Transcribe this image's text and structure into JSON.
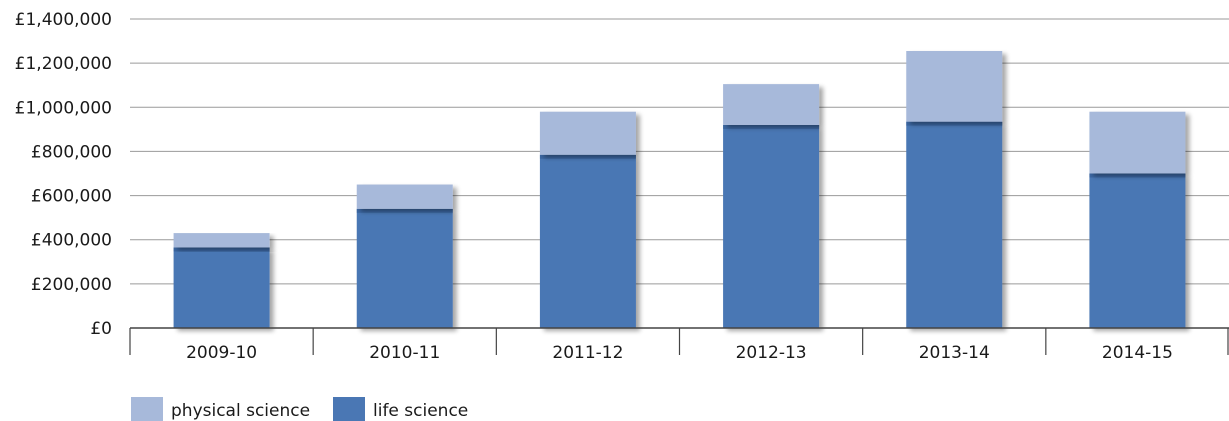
{
  "chart_data": {
    "type": "bar",
    "stacked": true,
    "categories": [
      "2009-10",
      "2010-11",
      "2011-12",
      "2012-13",
      "2013-14",
      "2014-15"
    ],
    "series": [
      {
        "name": "life science",
        "color": "#4a77b4",
        "values": [
          365000,
          540000,
          785000,
          920000,
          935000,
          700000
        ]
      },
      {
        "name": "physical science",
        "color": "#a7b9da",
        "values": [
          65000,
          110000,
          195000,
          185000,
          320000,
          280000
        ]
      }
    ],
    "ylim": [
      0,
      1400000
    ],
    "yticks": [
      0,
      200000,
      400000,
      600000,
      800000,
      1000000,
      1200000,
      1400000
    ],
    "ytick_labels": [
      "£0",
      "£200,000",
      "£400,000",
      "£600,000",
      "£800,000",
      "£1,000,000",
      "£1,200,000",
      "£1,400,000"
    ],
    "grid": true,
    "legend": {
      "position": "bottom-left",
      "order": [
        "physical science",
        "life science"
      ]
    }
  }
}
